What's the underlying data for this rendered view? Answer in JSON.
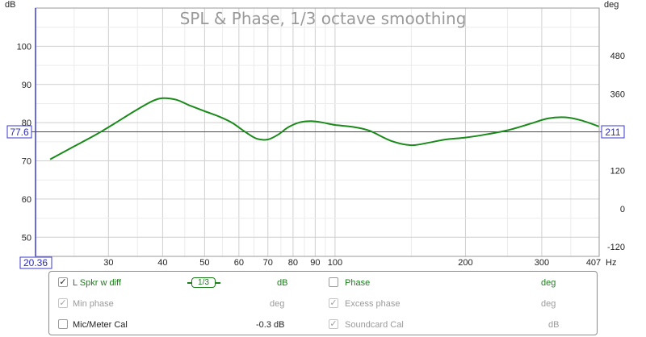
{
  "chart_data": {
    "type": "line",
    "title": "SPL & Phase, 1/3 octave smoothing",
    "xlabel": "Hz",
    "ylabel_left": "dB",
    "ylabel_right": "deg",
    "x_scale": "log",
    "xlim": [
      20.36,
      407
    ],
    "ylim": [
      45,
      110
    ],
    "ylim_right": [
      -150,
      630
    ],
    "grid": true,
    "x_ticks": [
      30,
      40,
      50,
      60,
      70,
      80,
      90,
      100,
      200,
      300
    ],
    "x_tick_labels": [
      "30",
      "40",
      "50",
      "60",
      "70",
      "80",
      "90",
      "100",
      "200",
      "300"
    ],
    "x_start_label": "20.36",
    "x_end_label": "407",
    "y_ticks": [
      50,
      60,
      70,
      80,
      90,
      100
    ],
    "y_ticks_right": [
      -120,
      0,
      120,
      240,
      360,
      480
    ],
    "cursor": {
      "y_value": 77.6,
      "y_label": "77.6",
      "right_label": "211"
    },
    "series": [
      {
        "name": "L Spkr w diff",
        "color": "#1a8a1a",
        "x": [
          22,
          25,
          28,
          31,
          35,
          38,
          40,
          43,
          46,
          50,
          54,
          58,
          62,
          66,
          70,
          74,
          78,
          83,
          88,
          93,
          100,
          110,
          120,
          135,
          150,
          165,
          180,
          200,
          220,
          250,
          280,
          310,
          340,
          370,
          407
        ],
        "y": [
          70.4,
          73.8,
          76.8,
          79.8,
          83.5,
          85.7,
          86.4,
          86.0,
          84.6,
          83.0,
          81.6,
          79.9,
          77.6,
          75.8,
          75.6,
          76.9,
          78.8,
          80.1,
          80.4,
          80.1,
          79.4,
          78.9,
          77.9,
          75.2,
          74.1,
          74.8,
          75.6,
          76.1,
          76.8,
          78.0,
          79.6,
          81.1,
          81.4,
          80.6,
          79.0
        ]
      }
    ]
  },
  "legend": {
    "rows": [
      {
        "left_checked": true,
        "left_label": "L Spkr w diff",
        "smoothing": "1/3",
        "left_unit": "dB",
        "right_checked": false,
        "right_label": "Phase",
        "right_unit": "deg"
      },
      {
        "left_checked": true,
        "left_label": "Min phase",
        "left_unit": "deg",
        "right_checked": true,
        "right_label": "Excess phase",
        "right_unit": "deg"
      },
      {
        "left_checked": false,
        "left_label": "Mic/Meter Cal",
        "left_unit": "-0.3 dB",
        "right_checked": true,
        "right_label": "Soundcard Cal",
        "right_unit": "dB"
      }
    ]
  }
}
